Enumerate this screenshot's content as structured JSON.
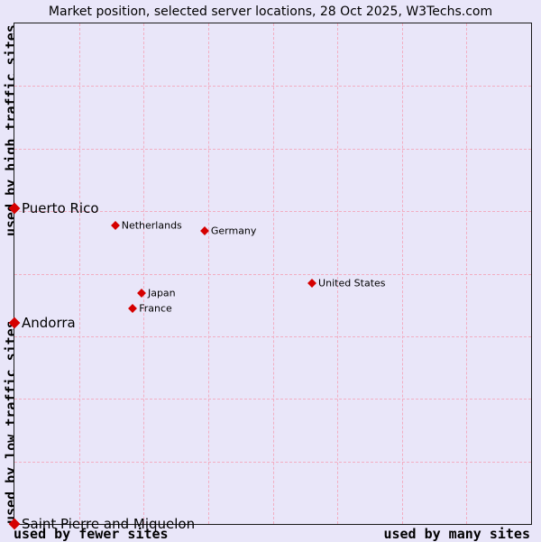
{
  "title": "Market position, selected server locations, 28 Oct 2025, W3Techs.com",
  "axes": {
    "y_top_label": "used by high traffic sites",
    "y_bottom_label": "used by low traffic sites",
    "x_left_label": "used by fewer sites",
    "x_right_label": "used by many sites"
  },
  "colors": {
    "background": "#e9e6f9",
    "marker": "#d50000",
    "grid": "#f2aec2",
    "plot_border": "#1a1a1a",
    "text": "#000000"
  },
  "chart_data": {
    "type": "scatter",
    "title": "Market position, selected server locations, 28 Oct 2025, W3Techs.com",
    "xlabel_left": "used by fewer sites",
    "xlabel_right": "used by many sites",
    "ylabel_top": "used by high traffic sites",
    "ylabel_bottom": "used by low traffic sites",
    "x_range": [
      0,
      1
    ],
    "y_range": [
      0,
      1
    ],
    "grid": {
      "columns": 8,
      "rows": 8,
      "style": "dashed"
    },
    "legend": "none",
    "points": [
      {
        "name": "Puerto Rico",
        "x": 0.0,
        "y": 0.631,
        "emphasis": true
      },
      {
        "name": "Netherlands",
        "x": 0.195,
        "y": 0.596,
        "emphasis": false
      },
      {
        "name": "Germany",
        "x": 0.368,
        "y": 0.586,
        "emphasis": false
      },
      {
        "name": "United States",
        "x": 0.576,
        "y": 0.481,
        "emphasis": false
      },
      {
        "name": "Japan",
        "x": 0.246,
        "y": 0.461,
        "emphasis": false
      },
      {
        "name": "France",
        "x": 0.229,
        "y": 0.431,
        "emphasis": false
      },
      {
        "name": "Andorra",
        "x": 0.0,
        "y": 0.402,
        "emphasis": true
      },
      {
        "name": "Saint Pierre and Miquelon",
        "x": 0.0,
        "y": 0.0,
        "emphasis": true
      }
    ]
  }
}
